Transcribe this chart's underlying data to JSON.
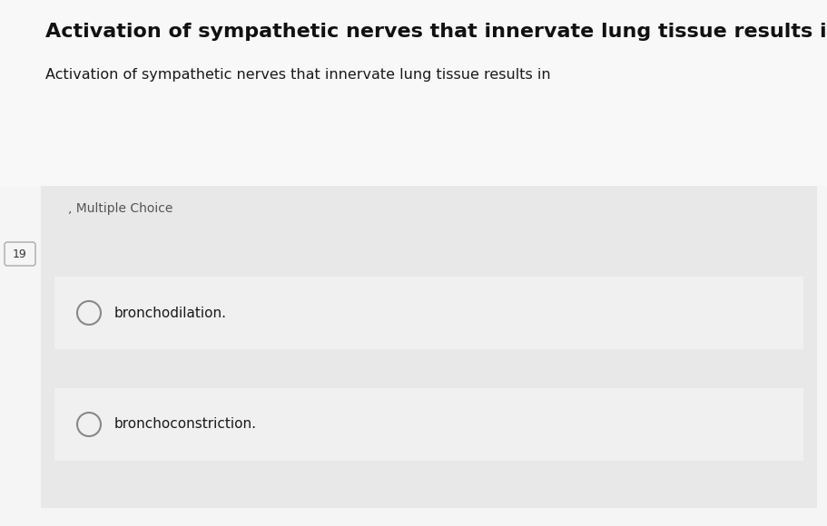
{
  "title": "Activation of sympathetic nerves that innervate lung tissue results in",
  "subtitle": "Activation of sympathetic nerves that innervate lung tissue results in",
  "question_type": "Multiple Choice",
  "question_number": "19",
  "options": [
    "bronchodilation.",
    "bronchoconstriction."
  ],
  "bg_color": "#f0f0f0",
  "top_bg_color": "#f5f5f5",
  "card_bg_color": "#e8e8e8",
  "option_bg_color": "#f0f0f0",
  "title_color": "#111111",
  "subtitle_color": "#1a1a1a",
  "option_text_color": "#1a1a1a",
  "question_type_color": "#555555",
  "number_color": "#333333",
  "title_fontsize": 16,
  "subtitle_fontsize": 11.5,
  "option_fontsize": 11,
  "question_type_fontsize": 10,
  "number_fontsize": 9
}
